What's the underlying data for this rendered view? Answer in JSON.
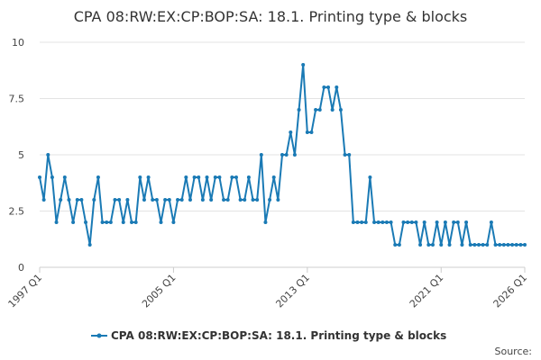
{
  "chart_data": {
    "type": "line",
    "title": "CPA 08:RW:EX:CP:BOP:SA: 18.1. Printing type & blocks",
    "source": "Source:",
    "categories": [
      "1997 Q1",
      null,
      null,
      null,
      null,
      null,
      null,
      null,
      null,
      null,
      null,
      null,
      null,
      null,
      null,
      null,
      null,
      null,
      null,
      null,
      null,
      null,
      null,
      null,
      null,
      null,
      null,
      null,
      null,
      null,
      null,
      null,
      "2005 Q1",
      null,
      null,
      null,
      null,
      null,
      null,
      null,
      null,
      null,
      null,
      null,
      null,
      null,
      null,
      null,
      null,
      null,
      null,
      null,
      null,
      null,
      null,
      null,
      null,
      null,
      null,
      null,
      null,
      null,
      null,
      null,
      "2013 Q1",
      null,
      null,
      null,
      null,
      null,
      null,
      null,
      null,
      null,
      null,
      null,
      null,
      null,
      null,
      null,
      null,
      null,
      null,
      null,
      null,
      null,
      null,
      null,
      null,
      null,
      null,
      null,
      null,
      null,
      null,
      null,
      "2021 Q1",
      null,
      null,
      null,
      null,
      null,
      null,
      null,
      null,
      null,
      null,
      null,
      null,
      null,
      null,
      null,
      null,
      null,
      null,
      null,
      "2026 Q1"
    ],
    "series": [
      {
        "name": "CPA 08:RW:EX:CP:BOP:SA: 18.1. Printing type & blocks",
        "color": "#1a7ab5",
        "values": [
          4,
          3,
          5,
          4,
          2,
          3,
          4,
          3,
          2,
          3,
          3,
          2,
          1,
          3,
          4,
          2,
          2,
          2,
          3,
          3,
          2,
          3,
          2,
          2,
          4,
          3,
          4,
          3,
          3,
          2,
          3,
          3,
          2,
          3,
          3,
          4,
          3,
          4,
          4,
          3,
          4,
          3,
          4,
          4,
          3,
          3,
          4,
          4,
          3,
          3,
          4,
          3,
          3,
          5,
          2,
          3,
          4,
          3,
          5,
          5,
          6,
          5,
          7,
          9,
          6,
          6,
          7,
          7,
          8,
          8,
          7,
          8,
          7,
          5,
          5,
          2,
          2,
          2,
          2,
          4,
          2,
          2,
          2,
          2,
          2,
          1,
          1,
          2,
          2,
          2,
          2,
          1,
          2,
          1,
          1,
          2,
          1,
          2,
          1,
          2,
          2,
          1,
          2,
          1,
          1,
          1,
          1,
          1,
          2,
          1,
          1,
          1,
          1,
          1,
          1,
          1,
          1
        ]
      }
    ],
    "ylim": [
      0,
      10
    ],
    "yticks": [
      0,
      2.5,
      5,
      7.5,
      10
    ],
    "grid": true
  }
}
